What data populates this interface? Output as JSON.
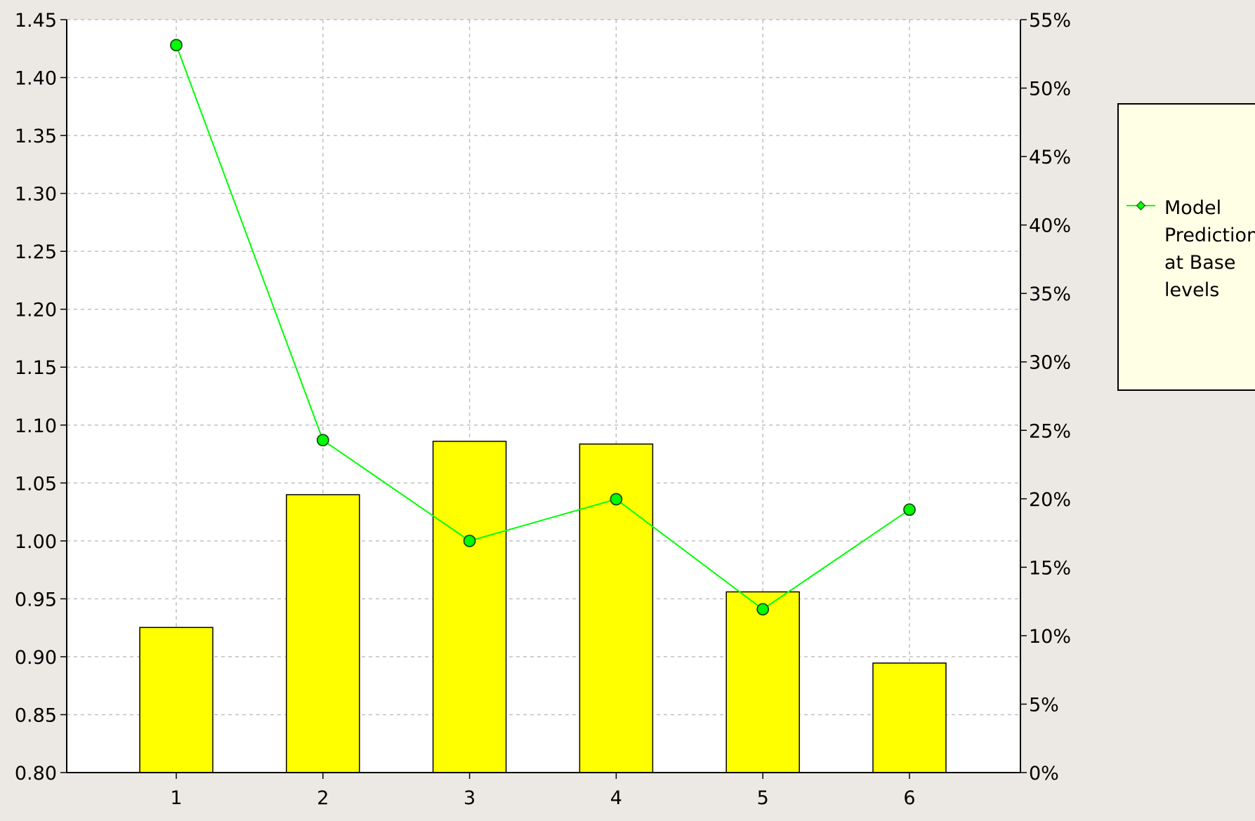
{
  "chart_data": {
    "type": "bar",
    "title": "",
    "categories": [
      "1",
      "2",
      "3",
      "4",
      "5",
      "6"
    ],
    "series": [
      {
        "kind": "bar",
        "axis": "right",
        "values": [
          10.6,
          20.3,
          24.2,
          24.0,
          13.2,
          8.0
        ],
        "color": "#ffff00"
      },
      {
        "name": "Model Prediction at Base levels",
        "kind": "line",
        "axis": "left",
        "values": [
          1.428,
          1.087,
          1.0,
          1.036,
          0.941,
          1.027
        ],
        "color": "#00ff00"
      }
    ],
    "y_left": {
      "min": 0.8,
      "max": 1.45,
      "ticks": [
        "0.80",
        "0.85",
        "0.90",
        "0.95",
        "1.00",
        "1.05",
        "1.10",
        "1.15",
        "1.20",
        "1.25",
        "1.30",
        "1.35",
        "1.40",
        "1.45"
      ]
    },
    "y_right": {
      "min": 0,
      "max": 55,
      "ticks": [
        "0%",
        "5%",
        "10%",
        "15%",
        "20%",
        "25%",
        "30%",
        "35%",
        "40%",
        "45%",
        "50%",
        "55%"
      ]
    },
    "grid": true,
    "legend": {
      "position": "right",
      "lines": [
        "Model",
        "Prediction",
        "at Base",
        "levels"
      ]
    }
  }
}
